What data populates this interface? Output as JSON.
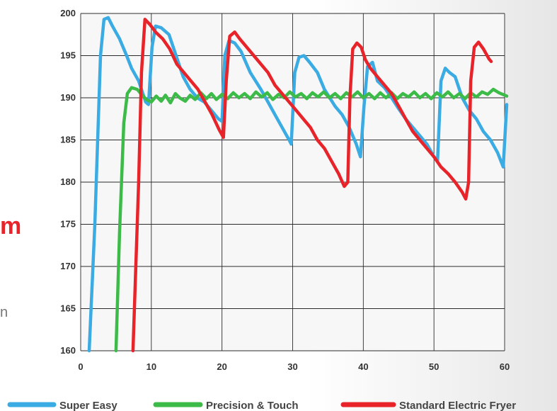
{
  "page_fragments": {
    "red_text": "m",
    "gray_text": "n"
  },
  "colors": {
    "super_easy": "#3aabe3",
    "precision_touch": "#3dbb48",
    "standard_fryer": "#e8242a",
    "grid": "#2b2b2b",
    "plot_bg": "#f7f7f7"
  },
  "chart_data": {
    "type": "line",
    "title": "",
    "xlabel": "",
    "ylabel": "",
    "xlim": [
      0,
      60
    ],
    "ylim": [
      160,
      200
    ],
    "x_ticks": [
      "0",
      "10",
      "20",
      "30",
      "40",
      "50",
      "60"
    ],
    "y_ticks": [
      "160",
      "165",
      "170",
      "175",
      "180",
      "185",
      "190",
      "195",
      "200"
    ],
    "grid": true,
    "legend_position": "bottom",
    "series": [
      {
        "name": "Super Easy",
        "color": "#3aabe3",
        "points": [
          [
            1.2,
            160
          ],
          [
            2,
            175
          ],
          [
            2.8,
            195
          ],
          [
            3.3,
            199.3
          ],
          [
            3.9,
            199.5
          ],
          [
            4.5,
            198.5
          ],
          [
            5.5,
            197
          ],
          [
            6.5,
            195
          ],
          [
            7.2,
            193.5
          ],
          [
            8.2,
            192
          ],
          [
            9.2,
            189.5
          ],
          [
            9.6,
            189.2
          ],
          [
            10.1,
            196
          ],
          [
            10.6,
            198.5
          ],
          [
            11.4,
            198.3
          ],
          [
            12.5,
            197.5
          ],
          [
            13.5,
            195
          ],
          [
            14.5,
            192.5
          ],
          [
            15.5,
            191
          ],
          [
            16.5,
            190
          ],
          [
            17.5,
            189.5
          ],
          [
            18.5,
            188.5
          ],
          [
            19.5,
            187.5
          ],
          [
            20,
            187.2
          ],
          [
            20.4,
            195
          ],
          [
            21,
            196.8
          ],
          [
            21.8,
            196.5
          ],
          [
            22.7,
            195.5
          ],
          [
            24,
            193
          ],
          [
            25.5,
            191
          ],
          [
            26.5,
            189.5
          ],
          [
            27.5,
            188
          ],
          [
            28.5,
            186.5
          ],
          [
            29.5,
            185
          ],
          [
            29.8,
            184.5
          ],
          [
            30.3,
            193
          ],
          [
            30.9,
            194.8
          ],
          [
            31.6,
            195
          ],
          [
            32.4,
            194.2
          ],
          [
            33.5,
            193
          ],
          [
            34.5,
            191
          ],
          [
            36,
            189
          ],
          [
            37,
            188
          ],
          [
            38,
            186.5
          ],
          [
            39,
            184.5
          ],
          [
            39.6,
            183
          ],
          [
            40.1,
            189
          ],
          [
            40.6,
            193.7
          ],
          [
            41.3,
            194.2
          ],
          [
            42,
            192
          ],
          [
            43,
            191.2
          ],
          [
            44,
            190
          ],
          [
            45,
            188.7
          ],
          [
            46,
            187.5
          ],
          [
            47,
            186.5
          ],
          [
            48,
            185.5
          ],
          [
            49,
            184.5
          ],
          [
            50,
            183
          ],
          [
            50.5,
            182.5
          ],
          [
            51,
            192
          ],
          [
            51.6,
            193.5
          ],
          [
            52.2,
            193
          ],
          [
            53,
            192.5
          ],
          [
            54,
            190
          ],
          [
            55,
            188.5
          ],
          [
            56,
            187.5
          ],
          [
            57,
            186
          ],
          [
            58,
            185
          ],
          [
            59,
            183.5
          ],
          [
            59.8,
            181.8
          ],
          [
            60.3,
            189.2
          ]
        ]
      },
      {
        "name": "Precision & Touch",
        "color": "#3dbb48",
        "points": [
          [
            5,
            160
          ],
          [
            5.5,
            174
          ],
          [
            6.1,
            187
          ],
          [
            6.6,
            190.5
          ],
          [
            7.2,
            191.2
          ],
          [
            8,
            191
          ],
          [
            8.5,
            190.5
          ],
          [
            9.3,
            189.8
          ],
          [
            10,
            189.5
          ],
          [
            10.7,
            190.2
          ],
          [
            11.4,
            189.6
          ],
          [
            12,
            190.3
          ],
          [
            12.7,
            189.4
          ],
          [
            13.4,
            190.5
          ],
          [
            14,
            190
          ],
          [
            14.8,
            189.6
          ],
          [
            15.5,
            190.3
          ],
          [
            16.2,
            189.8
          ],
          [
            17,
            190.6
          ],
          [
            17.8,
            189.9
          ],
          [
            18.5,
            190.5
          ],
          [
            19.2,
            189.8
          ],
          [
            20,
            190.4
          ],
          [
            20.8,
            189.9
          ],
          [
            21.6,
            190.6
          ],
          [
            22.4,
            190
          ],
          [
            23.2,
            190.5
          ],
          [
            24,
            189.9
          ],
          [
            24.8,
            190.7
          ],
          [
            25.6,
            190.1
          ],
          [
            26.4,
            190.6
          ],
          [
            27.2,
            189.8
          ],
          [
            28,
            190.4
          ],
          [
            28.8,
            190
          ],
          [
            29.6,
            190.7
          ],
          [
            30.4,
            190.1
          ],
          [
            31.2,
            190.5
          ],
          [
            32,
            189.9
          ],
          [
            32.8,
            190.6
          ],
          [
            33.6,
            190.1
          ],
          [
            34.4,
            190.7
          ],
          [
            35.2,
            190
          ],
          [
            36,
            190.5
          ],
          [
            36.8,
            189.9
          ],
          [
            37.6,
            190.6
          ],
          [
            38.4,
            190.1
          ],
          [
            39.2,
            190.7
          ],
          [
            40,
            190
          ],
          [
            40.8,
            190.5
          ],
          [
            41.6,
            189.9
          ],
          [
            42.4,
            190.6
          ],
          [
            43.2,
            190
          ],
          [
            44,
            190.6
          ],
          [
            44.8,
            189.9
          ],
          [
            45.6,
            190.5
          ],
          [
            46.4,
            190.1
          ],
          [
            47.2,
            190.7
          ],
          [
            48,
            190
          ],
          [
            48.8,
            190.5
          ],
          [
            49.6,
            189.9
          ],
          [
            50.4,
            190.6
          ],
          [
            51.2,
            190.1
          ],
          [
            52,
            190.7
          ],
          [
            52.8,
            190
          ],
          [
            53.6,
            190.5
          ],
          [
            54.4,
            189.9
          ],
          [
            55.2,
            190.6
          ],
          [
            56,
            190.1
          ],
          [
            56.8,
            190.7
          ],
          [
            57.6,
            190.4
          ],
          [
            58.4,
            191
          ],
          [
            59.2,
            190.6
          ],
          [
            60.3,
            190.2
          ]
        ]
      },
      {
        "name": "Standard Electric Fryer",
        "color": "#e8242a",
        "points": [
          [
            7.4,
            160
          ],
          [
            7.8,
            170
          ],
          [
            8.2,
            180
          ],
          [
            8.6,
            193
          ],
          [
            9.1,
            199.3
          ],
          [
            9.8,
            198.7
          ],
          [
            10.6,
            197.8
          ],
          [
            11.6,
            197
          ],
          [
            12.6,
            195.8
          ],
          [
            13.6,
            194
          ],
          [
            14.6,
            193
          ],
          [
            15.6,
            192
          ],
          [
            16.6,
            191
          ],
          [
            17.6,
            189.5
          ],
          [
            18.6,
            188
          ],
          [
            19.6,
            186.2
          ],
          [
            20.2,
            185.3
          ],
          [
            20.6,
            192
          ],
          [
            21.1,
            197.3
          ],
          [
            21.8,
            197.8
          ],
          [
            22.5,
            197
          ],
          [
            23.5,
            196
          ],
          [
            24.5,
            195
          ],
          [
            25.5,
            194
          ],
          [
            26.5,
            193
          ],
          [
            27.5,
            191.5
          ],
          [
            28.5,
            190.5
          ],
          [
            29.5,
            189.5
          ],
          [
            30.5,
            188.5
          ],
          [
            31.5,
            187.5
          ],
          [
            32.5,
            186.5
          ],
          [
            33.5,
            185
          ],
          [
            34.5,
            184
          ],
          [
            35.5,
            182.5
          ],
          [
            36.5,
            181
          ],
          [
            37.3,
            179.5
          ],
          [
            37.8,
            180
          ],
          [
            38.1,
            190
          ],
          [
            38.5,
            195.8
          ],
          [
            39.1,
            196.5
          ],
          [
            39.7,
            196
          ],
          [
            40.3,
            194.5
          ],
          [
            41,
            193.5
          ],
          [
            42,
            192.5
          ],
          [
            43,
            191.5
          ],
          [
            44,
            190.5
          ],
          [
            45,
            189
          ],
          [
            46,
            187.5
          ],
          [
            47,
            186
          ],
          [
            48,
            185
          ],
          [
            49,
            184
          ],
          [
            50,
            183
          ],
          [
            51,
            181.8
          ],
          [
            52,
            181
          ],
          [
            53,
            180
          ],
          [
            54,
            178.8
          ],
          [
            54.5,
            178
          ],
          [
            54.9,
            180
          ],
          [
            55.2,
            192
          ],
          [
            55.7,
            196
          ],
          [
            56.3,
            196.6
          ],
          [
            57,
            195.8
          ],
          [
            57.8,
            194.6
          ],
          [
            58.1,
            194.3
          ]
        ]
      }
    ]
  }
}
